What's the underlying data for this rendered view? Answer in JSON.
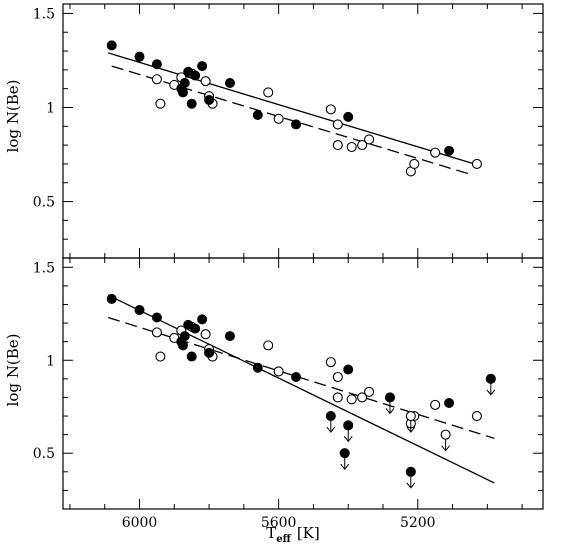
{
  "chart_data": [
    {
      "type": "scatter",
      "xlabel_main": "T",
      "xlabel_sub": "eff",
      "xlabel_unit": "[K]",
      "ylabel": "log N(Be)",
      "xlim": [
        6220,
        4840
      ],
      "ylim": [
        0.2,
        1.55
      ],
      "x_ticks": [
        6000,
        5600,
        5200
      ],
      "x_tick_labels": [
        "6000",
        "5600",
        "5200"
      ],
      "y_ticks": [
        0.5,
        1.0,
        1.5
      ],
      "y_tick_labels": [
        "0.5",
        "1",
        "1.5"
      ],
      "filled_points": [
        {
          "x": 6080,
          "y": 1.33
        },
        {
          "x": 6000,
          "y": 1.27
        },
        {
          "x": 5950,
          "y": 1.23
        },
        {
          "x": 5860,
          "y": 1.19
        },
        {
          "x": 5840,
          "y": 1.17
        },
        {
          "x": 5820,
          "y": 1.22
        },
        {
          "x": 5870,
          "y": 1.13
        },
        {
          "x": 5880,
          "y": 1.1
        },
        {
          "x": 5875,
          "y": 1.08
        },
        {
          "x": 5850,
          "y": 1.02
        },
        {
          "x": 5800,
          "y": 1.04
        },
        {
          "x": 5740,
          "y": 1.13
        },
        {
          "x": 5660,
          "y": 0.96
        },
        {
          "x": 5550,
          "y": 0.91
        },
        {
          "x": 5400,
          "y": 0.95
        },
        {
          "x": 5110,
          "y": 0.77
        }
      ],
      "open_points": [
        {
          "x": 5950,
          "y": 1.15
        },
        {
          "x": 5940,
          "y": 1.02
        },
        {
          "x": 5900,
          "y": 1.12
        },
        {
          "x": 5880,
          "y": 1.16
        },
        {
          "x": 5850,
          "y": 1.18
        },
        {
          "x": 5810,
          "y": 1.14
        },
        {
          "x": 5800,
          "y": 1.06
        },
        {
          "x": 5790,
          "y": 1.02
        },
        {
          "x": 5630,
          "y": 1.08
        },
        {
          "x": 5600,
          "y": 0.94
        },
        {
          "x": 5450,
          "y": 0.99
        },
        {
          "x": 5430,
          "y": 0.91
        },
        {
          "x": 5430,
          "y": 0.8
        },
        {
          "x": 5390,
          "y": 0.79
        },
        {
          "x": 5360,
          "y": 0.8
        },
        {
          "x": 5340,
          "y": 0.83
        },
        {
          "x": 5220,
          "y": 0.66
        },
        {
          "x": 5210,
          "y": 0.7
        },
        {
          "x": 5150,
          "y": 0.76
        },
        {
          "x": 5030,
          "y": 0.7
        }
      ],
      "fit_lines": [
        {
          "style": "solid",
          "points": [
            [
              6090,
              1.29
            ],
            [
              5020,
              0.69
            ]
          ]
        },
        {
          "style": "dashed",
          "points": [
            [
              6080,
              1.22
            ],
            [
              5040,
              0.64
            ]
          ]
        }
      ]
    },
    {
      "type": "scatter",
      "xlabel_main": "T",
      "xlabel_sub": "eff",
      "xlabel_unit": "[K]",
      "ylabel": "log N(Be)",
      "xlim": [
        6220,
        4840
      ],
      "ylim": [
        0.2,
        1.55
      ],
      "x_ticks": [
        6000,
        5600,
        5200
      ],
      "x_tick_labels": [
        "6000",
        "5600",
        "5200"
      ],
      "y_ticks": [
        0.5,
        1.0,
        1.5
      ],
      "y_tick_labels": [
        "0.5",
        "1",
        "1.5"
      ],
      "filled_points": [
        {
          "x": 6080,
          "y": 1.33
        },
        {
          "x": 6000,
          "y": 1.27
        },
        {
          "x": 5950,
          "y": 1.23
        },
        {
          "x": 5860,
          "y": 1.19
        },
        {
          "x": 5840,
          "y": 1.17
        },
        {
          "x": 5820,
          "y": 1.22
        },
        {
          "x": 5870,
          "y": 1.13
        },
        {
          "x": 5880,
          "y": 1.1
        },
        {
          "x": 5875,
          "y": 1.08
        },
        {
          "x": 5850,
          "y": 1.02
        },
        {
          "x": 5800,
          "y": 1.04
        },
        {
          "x": 5740,
          "y": 1.13
        },
        {
          "x": 5660,
          "y": 0.96
        },
        {
          "x": 5550,
          "y": 0.91
        },
        {
          "x": 5400,
          "y": 0.95
        },
        {
          "x": 5110,
          "y": 0.77
        }
      ],
      "open_points": [
        {
          "x": 5950,
          "y": 1.15
        },
        {
          "x": 5940,
          "y": 1.02
        },
        {
          "x": 5900,
          "y": 1.12
        },
        {
          "x": 5880,
          "y": 1.16
        },
        {
          "x": 5850,
          "y": 1.18
        },
        {
          "x": 5810,
          "y": 1.14
        },
        {
          "x": 5800,
          "y": 1.06
        },
        {
          "x": 5790,
          "y": 1.02
        },
        {
          "x": 5630,
          "y": 1.08
        },
        {
          "x": 5600,
          "y": 0.94
        },
        {
          "x": 5450,
          "y": 0.99
        },
        {
          "x": 5430,
          "y": 0.91
        },
        {
          "x": 5430,
          "y": 0.8
        },
        {
          "x": 5390,
          "y": 0.79
        },
        {
          "x": 5360,
          "y": 0.8
        },
        {
          "x": 5340,
          "y": 0.83
        },
        {
          "x": 5220,
          "y": 0.66
        },
        {
          "x": 5210,
          "y": 0.7
        },
        {
          "x": 5150,
          "y": 0.76
        },
        {
          "x": 5030,
          "y": 0.7
        }
      ],
      "filled_upper_limits": [
        {
          "x": 5450,
          "y": 0.7
        },
        {
          "x": 5400,
          "y": 0.65
        },
        {
          "x": 5410,
          "y": 0.5
        },
        {
          "x": 5280,
          "y": 0.8
        },
        {
          "x": 5220,
          "y": 0.4
        },
        {
          "x": 4990,
          "y": 0.9
        }
      ],
      "open_upper_limits": [
        {
          "x": 5220,
          "y": 0.7
        },
        {
          "x": 5120,
          "y": 0.6
        }
      ],
      "fit_lines": [
        {
          "style": "solid",
          "points": [
            [
              6090,
              1.35
            ],
            [
              4980,
              0.34
            ]
          ]
        },
        {
          "style": "dashed",
          "points": [
            [
              6090,
              1.23
            ],
            [
              4980,
              0.58
            ]
          ]
        }
      ]
    }
  ]
}
